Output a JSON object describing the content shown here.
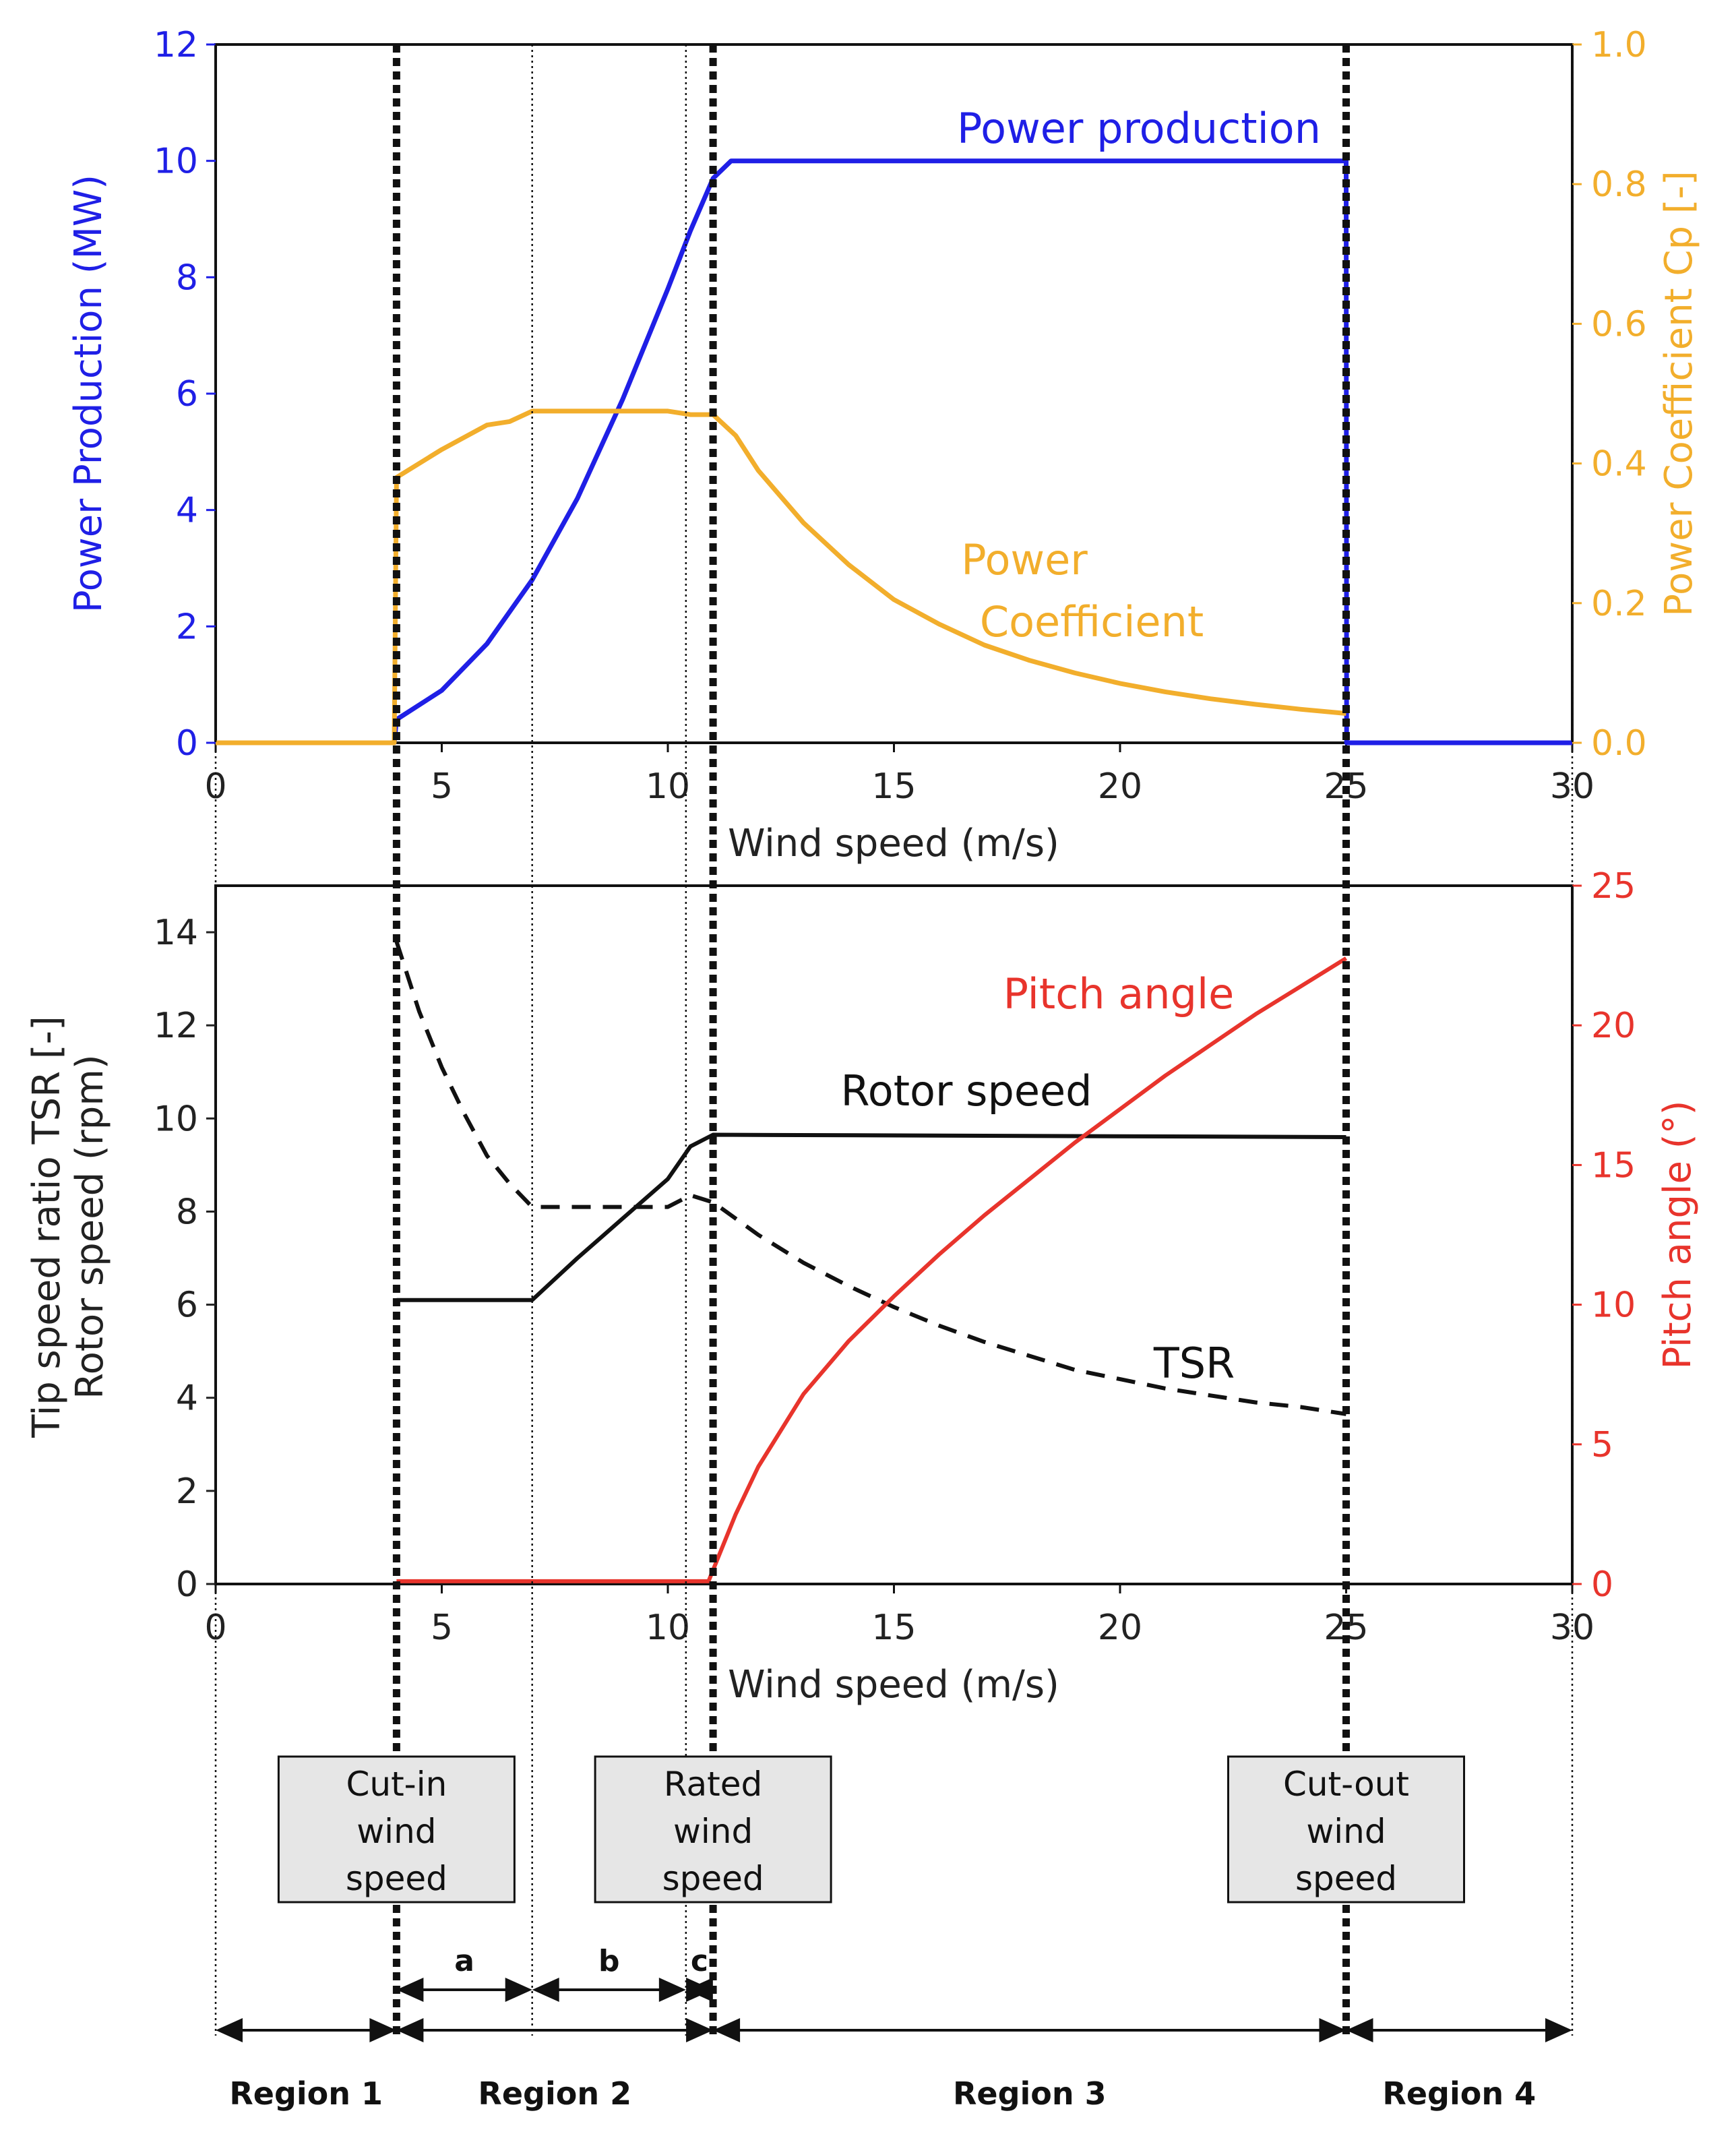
{
  "colors": {
    "power": "#1f1fe6",
    "cp": "#f2ae2c",
    "rotor": "#111111",
    "tsr": "#111111",
    "pitch": "#e8342c",
    "box_fill": "#e6e6e6"
  },
  "chart_data": [
    {
      "type": "line",
      "xlabel": "Wind speed (m/s)",
      "xlim": [
        0,
        30
      ],
      "xticks": [
        "0",
        "5",
        "10",
        "15",
        "20",
        "25",
        "30"
      ],
      "ylabel_left": "Power Production (MW)",
      "ylim_left": [
        0,
        12
      ],
      "yticks_left": [
        "0",
        "2",
        "4",
        "6",
        "8",
        "10",
        "12"
      ],
      "ylabel_right": "Power Coefficient Cp [-]",
      "ylim_right": [
        0,
        1.0
      ],
      "yticks_right": [
        "0.0",
        "0.2",
        "0.4",
        "0.6",
        "0.8",
        "1.0"
      ],
      "series": [
        {
          "name": "Power production",
          "axis": "left",
          "x": [
            0,
            3.95,
            4,
            5,
            6,
            7,
            8,
            9,
            10,
            10.5,
            11,
            11.4,
            15,
            20,
            25,
            25.01,
            30
          ],
          "values": [
            0,
            0,
            0.4,
            0.9,
            1.7,
            2.8,
            4.2,
            5.9,
            7.8,
            8.8,
            9.7,
            10,
            10,
            10,
            10,
            0,
            0
          ]
        },
        {
          "name": "Power Coefficient",
          "label_lines": [
            "Power",
            "Coefficient"
          ],
          "axis": "right",
          "x": [
            0,
            3.95,
            4,
            5,
            6,
            6.5,
            7,
            8,
            9,
            10,
            10.5,
            11,
            11.5,
            12,
            13,
            14,
            15,
            16,
            17,
            18,
            19,
            20,
            21,
            22,
            23,
            24,
            25
          ],
          "values": [
            0,
            0,
            0.38,
            0.42,
            0.455,
            0.46,
            0.475,
            0.475,
            0.475,
            0.475,
            0.47,
            0.47,
            0.44,
            0.39,
            0.315,
            0.255,
            0.205,
            0.17,
            0.14,
            0.118,
            0.1,
            0.085,
            0.073,
            0.063,
            0.055,
            0.048,
            0.042
          ]
        }
      ]
    },
    {
      "type": "line",
      "xlabel": "Wind speed (m/s)",
      "xlim": [
        0,
        30
      ],
      "xticks": [
        "0",
        "5",
        "10",
        "15",
        "20",
        "25",
        "30"
      ],
      "ylabel_left": [
        "Tip speed ratio TSR [-]",
        "Rotor speed (rpm)"
      ],
      "ylim_left": [
        0,
        15
      ],
      "yticks_left": [
        "0",
        "2",
        "4",
        "6",
        "8",
        "10",
        "12",
        "14"
      ],
      "ylabel_right": "Pitch angle (°)",
      "ylim_right": [
        0,
        25
      ],
      "yticks_right": [
        "0",
        "5",
        "10",
        "15",
        "20",
        "25"
      ],
      "series": [
        {
          "name": "Rotor speed",
          "axis": "left",
          "style": "solid",
          "x": [
            4,
            7,
            8,
            9,
            10,
            10.5,
            11,
            25
          ],
          "values": [
            6.1,
            6.1,
            7,
            7.85,
            8.7,
            9.4,
            9.65,
            9.6
          ]
        },
        {
          "name": "TSR",
          "axis": "left",
          "style": "dashed",
          "x": [
            4,
            4.5,
            5,
            5.5,
            6,
            6.5,
            7,
            8,
            9,
            10,
            10.5,
            11,
            12,
            13,
            14,
            15,
            16,
            17,
            18,
            19,
            20,
            21,
            22,
            23,
            24,
            25
          ],
          "values": [
            13.8,
            12.3,
            11.1,
            10.1,
            9.2,
            8.6,
            8.1,
            8.1,
            8.1,
            8.1,
            8.35,
            8.2,
            7.5,
            6.9,
            6.4,
            5.95,
            5.55,
            5.2,
            4.9,
            4.6,
            4.4,
            4.2,
            4.05,
            3.9,
            3.8,
            3.65
          ]
        },
        {
          "name": "Pitch angle",
          "axis": "right",
          "style": "solid",
          "x": [
            4,
            10.9,
            11,
            11.5,
            12,
            13,
            14,
            15,
            16,
            17,
            18,
            19,
            20,
            21,
            22,
            23,
            24,
            25
          ],
          "values": [
            0.1,
            0.1,
            0.5,
            2.5,
            4.2,
            6.8,
            8.7,
            10.3,
            11.8,
            13.2,
            14.5,
            15.8,
            17.0,
            18.2,
            19.3,
            20.4,
            21.4,
            22.4
          ]
        }
      ]
    }
  ],
  "markers": {
    "cut_in": 4,
    "rated": 11,
    "cut_out": 25,
    "sub_a_end": 7,
    "sub_b_end": 10.4
  },
  "boxes": [
    {
      "x": 4,
      "lines": [
        "Cut-in",
        "wind",
        "speed"
      ]
    },
    {
      "x": 11,
      "lines": [
        "Rated",
        "wind",
        "speed"
      ]
    },
    {
      "x": 25,
      "lines": [
        "Cut-out",
        "wind",
        "speed"
      ]
    }
  ],
  "segments": [
    {
      "label": "a",
      "x0": 4,
      "x1": 7
    },
    {
      "label": "b",
      "x0": 7,
      "x1": 10.4
    },
    {
      "label": "c",
      "x0": 10.4,
      "x1": 11
    }
  ],
  "regions": [
    {
      "label": "Region 1",
      "x0": 0,
      "x1": 4
    },
    {
      "label": "Region 2",
      "x0": 4,
      "x1": 11
    },
    {
      "label": "Region 3",
      "x0": 11,
      "x1": 25
    },
    {
      "label": "Region 4",
      "x0": 25,
      "x1": 30
    }
  ]
}
